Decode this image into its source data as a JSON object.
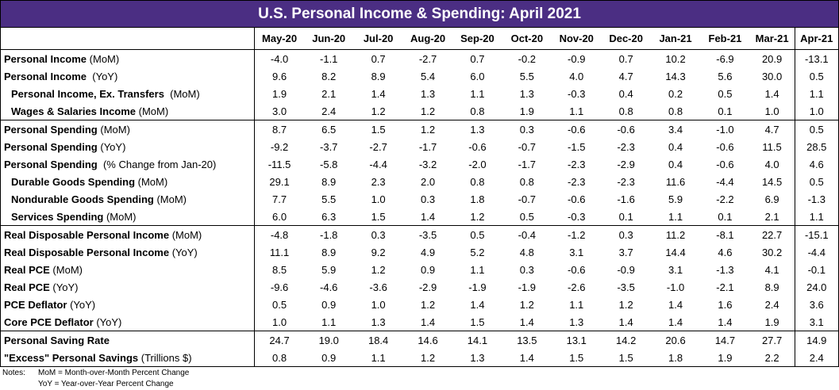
{
  "title": "U.S. Personal Income & Spending: April 2021",
  "columns": [
    "May-20",
    "Jun-20",
    "Jul-20",
    "Aug-20",
    "Sep-20",
    "Oct-20",
    "Nov-20",
    "Dec-20",
    "Jan-21",
    "Feb-21",
    "Mar-21",
    "Apr-21"
  ],
  "rows": [
    {
      "bold": "Personal Income",
      "unit": " (MoM)",
      "values": [
        "-4.0",
        "-1.1",
        "0.7",
        "-2.7",
        "0.7",
        "-0.2",
        "-0.9",
        "0.7",
        "10.2",
        "-6.9",
        "20.9",
        "-13.1"
      ]
    },
    {
      "bold": "Personal Income",
      "unit": "  (YoY)",
      "values": [
        "9.6",
        "8.2",
        "8.9",
        "5.4",
        "6.0",
        "5.5",
        "4.0",
        "4.7",
        "14.3",
        "5.6",
        "30.0",
        "0.5"
      ]
    },
    {
      "bold": "Personal Income, Ex. Transfers",
      "unit": "  (MoM)",
      "values": [
        "1.9",
        "2.1",
        "1.4",
        "1.3",
        "1.1",
        "1.3",
        "-0.3",
        "0.4",
        "0.2",
        "0.5",
        "1.4",
        "1.1"
      ]
    },
    {
      "bold": "Wages & Salaries Income",
      "unit": " (MoM)",
      "values": [
        "3.0",
        "2.4",
        "1.2",
        "1.2",
        "0.8",
        "1.9",
        "1.1",
        "0.8",
        "0.8",
        "0.1",
        "1.0",
        "1.0"
      ]
    },
    {
      "bold": "Personal Spending",
      "unit": " (MoM)",
      "values": [
        "8.7",
        "6.5",
        "1.5",
        "1.2",
        "1.3",
        "0.3",
        "-0.6",
        "-0.6",
        "3.4",
        "-1.0",
        "4.7",
        "0.5"
      ]
    },
    {
      "bold": "Personal Spending",
      "unit": " (YoY)",
      "values": [
        "-9.2",
        "-3.7",
        "-2.7",
        "-1.7",
        "-0.6",
        "-0.7",
        "-1.5",
        "-2.3",
        "0.4",
        "-0.6",
        "11.5",
        "28.5"
      ]
    },
    {
      "bold": "Personal Spending",
      "unit": "  (% Change from Jan-20)",
      "values": [
        "-11.5",
        "-5.8",
        "-4.4",
        "-3.2",
        "-2.0",
        "-1.7",
        "-2.3",
        "-2.9",
        "0.4",
        "-0.6",
        "4.0",
        "4.6"
      ]
    },
    {
      "bold": "Durable Goods Spending",
      "unit": " (MoM)",
      "values": [
        "29.1",
        "8.9",
        "2.3",
        "2.0",
        "0.8",
        "0.8",
        "-2.3",
        "-2.3",
        "11.6",
        "-4.4",
        "14.5",
        "0.5"
      ]
    },
    {
      "bold": "Nondurable Goods Spending",
      "unit": " (MoM)",
      "values": [
        "7.7",
        "5.5",
        "1.0",
        "0.3",
        "1.8",
        "-0.7",
        "-0.6",
        "-1.6",
        "5.9",
        "-2.2",
        "6.9",
        "-1.3"
      ]
    },
    {
      "bold": "Services Spending",
      "unit": " (MoM)",
      "values": [
        "6.0",
        "6.3",
        "1.5",
        "1.4",
        "1.2",
        "0.5",
        "-0.3",
        "0.1",
        "1.1",
        "0.1",
        "2.1",
        "1.1"
      ]
    },
    {
      "bold": "Real Disposable Personal Income",
      "unit": " (MoM)",
      "values": [
        "-4.8",
        "-1.8",
        "0.3",
        "-3.5",
        "0.5",
        "-0.4",
        "-1.2",
        "0.3",
        "11.2",
        "-8.1",
        "22.7",
        "-15.1"
      ]
    },
    {
      "bold": "Real Disposable Personal Income",
      "unit": " (YoY)",
      "values": [
        "11.1",
        "8.9",
        "9.2",
        "4.9",
        "5.2",
        "4.8",
        "3.1",
        "3.7",
        "14.4",
        "4.6",
        "30.2",
        "-4.4"
      ]
    },
    {
      "bold": "Real PCE",
      "unit": " (MoM)",
      "values": [
        "8.5",
        "5.9",
        "1.2",
        "0.9",
        "1.1",
        "0.3",
        "-0.6",
        "-0.9",
        "3.1",
        "-1.3",
        "4.1",
        "-0.1"
      ]
    },
    {
      "bold": "Real PCE",
      "unit": " (YoY)",
      "values": [
        "-9.6",
        "-4.6",
        "-3.6",
        "-2.9",
        "-1.9",
        "-1.9",
        "-2.6",
        "-3.5",
        "-1.0",
        "-2.1",
        "8.9",
        "24.0"
      ]
    },
    {
      "bold": "PCE Deflator",
      "unit": " (YoY)",
      "values": [
        "0.5",
        "0.9",
        "1.0",
        "1.2",
        "1.4",
        "1.2",
        "1.1",
        "1.2",
        "1.4",
        "1.6",
        "2.4",
        "3.6"
      ]
    },
    {
      "bold": "Core PCE Deflator",
      "unit": " (YoY)",
      "values": [
        "1.0",
        "1.1",
        "1.3",
        "1.4",
        "1.5",
        "1.4",
        "1.3",
        "1.4",
        "1.4",
        "1.4",
        "1.9",
        "3.1"
      ]
    },
    {
      "bold": "Personal Saving Rate",
      "unit": "",
      "values": [
        "24.7",
        "19.0",
        "18.4",
        "14.6",
        "14.1",
        "13.5",
        "13.1",
        "14.2",
        "20.6",
        "14.7",
        "27.7",
        "14.9"
      ]
    },
    {
      "bold": "\"Excess\" Personal Savings",
      "unit": " (Trillions $)",
      "values": [
        "0.8",
        "0.9",
        "1.1",
        "1.2",
        "1.3",
        "1.4",
        "1.5",
        "1.5",
        "1.8",
        "1.9",
        "2.2",
        "2.4"
      ]
    }
  ],
  "notes": [
    {
      "key": "Notes:",
      "text": "MoM = Month-over-Month Percent Change"
    },
    {
      "key": "",
      "text": "YoY = Year-over-Year Percent Change"
    }
  ]
}
